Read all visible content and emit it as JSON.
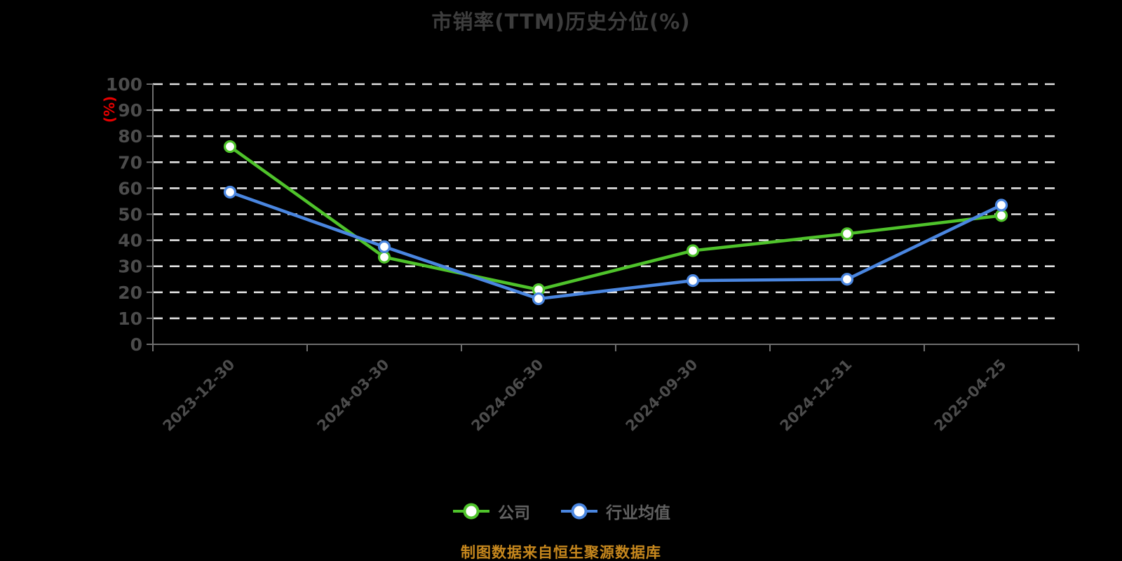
{
  "title": "市销率(TTM)历史分位(%)",
  "footer": "制图数据来自恒生聚源数据库",
  "colors": {
    "background": "#000000",
    "title": "#3d3d3d",
    "axis_label": "#4c4c4c",
    "axis_line": "#6e6e6e",
    "grid_line": "#e2e2e2",
    "legend_text": "#616161",
    "y_unit_label": "#e60000",
    "footer": "#c6871d"
  },
  "chart_data": {
    "type": "line",
    "title": "市销率(TTM)历史分位(%)",
    "xlabel": "",
    "ylabel": "(%)",
    "ylim": [
      0,
      100
    ],
    "y_ticks": [
      0,
      10,
      20,
      30,
      40,
      50,
      60,
      70,
      80,
      90,
      100
    ],
    "grid": "horizontal-dashed-white",
    "legend_position": "bottom",
    "x_label_rotation": -45,
    "categories": [
      "2023-12-30",
      "2024-03-30",
      "2024-06-30",
      "2024-09-30",
      "2024-12-31",
      "2025-04-25"
    ],
    "series": [
      {
        "name": "公司",
        "color": "#4fc32b",
        "marker": "hollow-circle",
        "values": [
          76,
          33.5,
          21,
          36,
          42.5,
          49.5
        ]
      },
      {
        "name": "行业均值",
        "color": "#4a86e0",
        "marker": "hollow-circle",
        "values": [
          58.5,
          37.5,
          17.5,
          24.5,
          25,
          53.5
        ]
      }
    ]
  },
  "legend": {
    "items": [
      {
        "label": "公司"
      },
      {
        "label": "行业均值"
      }
    ]
  }
}
